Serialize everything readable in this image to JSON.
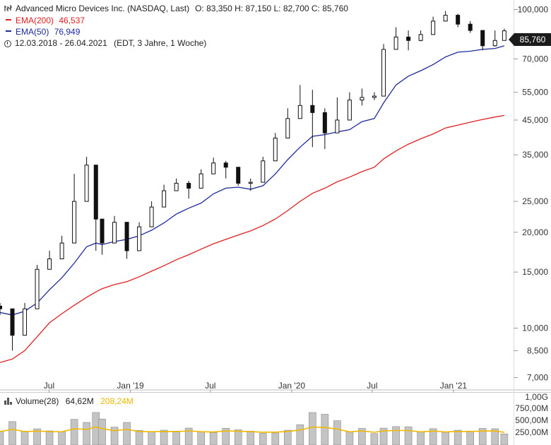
{
  "header": {
    "instrument": "Advanced Micro Devices Inc. (NASDAQ, Last)",
    "ohlc": "O: 83,350  H: 87,150  L: 82,700  C: 85,760",
    "ema200_label": "EMA(200)",
    "ema200_value": "46,537",
    "ema50_label": "EMA(50)",
    "ema50_value": "76,949",
    "period": "12.03.2018 - 26.04.2021",
    "period_info": "(EDT, 3 Jahre, 1 Woche)"
  },
  "colors": {
    "ema200": "#e02020",
    "ema50": "#1f2a9e",
    "candle": "#111111",
    "volume_ma": "#f0b800"
  },
  "icons": {
    "ohlc": "ohlc-bars-icon",
    "clock": "clock-icon",
    "volume": "volume-bars-icon"
  },
  "price_badge": "85,760",
  "volume_panel": {
    "label": "Volume(28)",
    "last_value": "64,62M",
    "ma_value": "208,24M",
    "y_ticks": [
      "1,00G",
      "750,00M",
      "500,00M",
      "250,00M"
    ]
  },
  "chart_data": {
    "type": "candlestick",
    "title": "Advanced Micro Devices Inc. (NASDAQ, Last)",
    "scale": "log",
    "ylim": [
      6400,
      105000
    ],
    "y_ticks": [
      "100,000",
      "70,000",
      "55,000",
      "45,000",
      "35,000",
      "25,000",
      "20,000",
      "15,000",
      "10,000",
      "8,500",
      "7,000"
    ],
    "y_tick_values": [
      100000,
      70000,
      55000,
      45000,
      35000,
      25000,
      20000,
      15000,
      10000,
      8500,
      7000
    ],
    "x_ticks": [
      "Jul",
      "Jan '19",
      "Jul",
      "Jan '20",
      "Jul",
      "Jan '21"
    ],
    "x_tick_dates": [
      "2018-07-01",
      "2019-01-01",
      "2019-07-01",
      "2020-01-01",
      "2020-07-01",
      "2021-01-01"
    ],
    "x_range": [
      "2018-03-12",
      "2021-05-17"
    ],
    "close_series": {
      "dates": [
        "2018-03-12",
        "2018-04-09",
        "2018-05-07",
        "2018-06-04",
        "2018-07-02",
        "2018-07-30",
        "2018-08-27",
        "2018-09-24",
        "2018-10-15",
        "2018-10-29",
        "2018-11-26",
        "2018-12-24",
        "2019-01-21",
        "2019-02-18",
        "2019-03-18",
        "2019-04-15",
        "2019-05-13",
        "2019-06-10",
        "2019-07-08",
        "2019-08-05",
        "2019-09-02",
        "2019-09-30",
        "2019-10-28",
        "2019-11-25",
        "2019-12-23",
        "2020-01-20",
        "2020-02-17",
        "2020-03-16",
        "2020-04-13",
        "2020-05-11",
        "2020-06-08",
        "2020-07-06",
        "2020-07-27",
        "2020-08-24",
        "2020-09-21",
        "2020-10-19",
        "2020-11-16",
        "2020-12-14",
        "2021-01-11",
        "2021-02-08",
        "2021-03-08",
        "2021-04-05",
        "2021-04-26"
      ],
      "close": [
        11500,
        9500,
        11500,
        15300,
        16500,
        18500,
        25000,
        32500,
        22000,
        18500,
        21500,
        17500,
        20800,
        24000,
        27000,
        28500,
        27500,
        30500,
        33000,
        32000,
        28500,
        28700,
        33500,
        39500,
        45500,
        50000,
        47500,
        41000,
        45000,
        52000,
        53000,
        53500,
        75000,
        82000,
        80000,
        83500,
        92000,
        96000,
        90000,
        86000,
        77000,
        80000,
        85760
      ],
      "high": [
        12000,
        10500,
        12000,
        15800,
        17500,
        19500,
        30500,
        34500,
        27000,
        21500,
        22500,
        20000,
        21500,
        25000,
        28200,
        29500,
        29000,
        31500,
        34300,
        33500,
        31000,
        29500,
        34500,
        41000,
        49000,
        58000,
        56000,
        49000,
        53000,
        55000,
        56500,
        55000,
        78000,
        88000,
        86000,
        86000,
        95000,
        99000,
        97000,
        92000,
        84000,
        86000,
        87150
      ],
      "low": [
        11000,
        8500,
        11000,
        14000,
        16000,
        18000,
        24500,
        28000,
        17500,
        17000,
        19500,
        16500,
        19500,
        23000,
        25500,
        27000,
        25500,
        29000,
        32000,
        29500,
        28000,
        27000,
        32500,
        38500,
        44500,
        49500,
        37000,
        36500,
        43000,
        51000,
        50000,
        52000,
        68500,
        76000,
        74500,
        79500,
        84000,
        92000,
        88000,
        84500,
        74500,
        76500,
        82700
      ]
    },
    "series": [
      {
        "name": "EMA(200)",
        "last": 46537,
        "values": [
          7800,
          8000,
          8500,
          9400,
          10400,
          11100,
          11800,
          12500,
          13000,
          13300,
          13700,
          14000,
          14500,
          15100,
          15700,
          16400,
          17000,
          17700,
          18400,
          19000,
          19600,
          20200,
          21000,
          22000,
          23400,
          25000,
          26500,
          27500,
          28800,
          29800,
          31000,
          32000,
          34000,
          36000,
          37800,
          39300,
          40700,
          42500,
          43400,
          44300,
          45200,
          46000,
          46537
        ]
      },
      {
        "name": "EMA(50)",
        "last": 76949,
        "values": [
          11200,
          11000,
          11300,
          12000,
          13200,
          14400,
          16000,
          18000,
          18500,
          18300,
          18700,
          19000,
          19500,
          20300,
          21400,
          22800,
          23800,
          24700,
          26400,
          27500,
          27700,
          27300,
          28000,
          30500,
          33800,
          37000,
          40000,
          40500,
          41300,
          42000,
          44500,
          45500,
          51000,
          58000,
          61800,
          64300,
          67200,
          71000,
          73500,
          74000,
          75000,
          75500,
          76949
        ]
      }
    ]
  }
}
